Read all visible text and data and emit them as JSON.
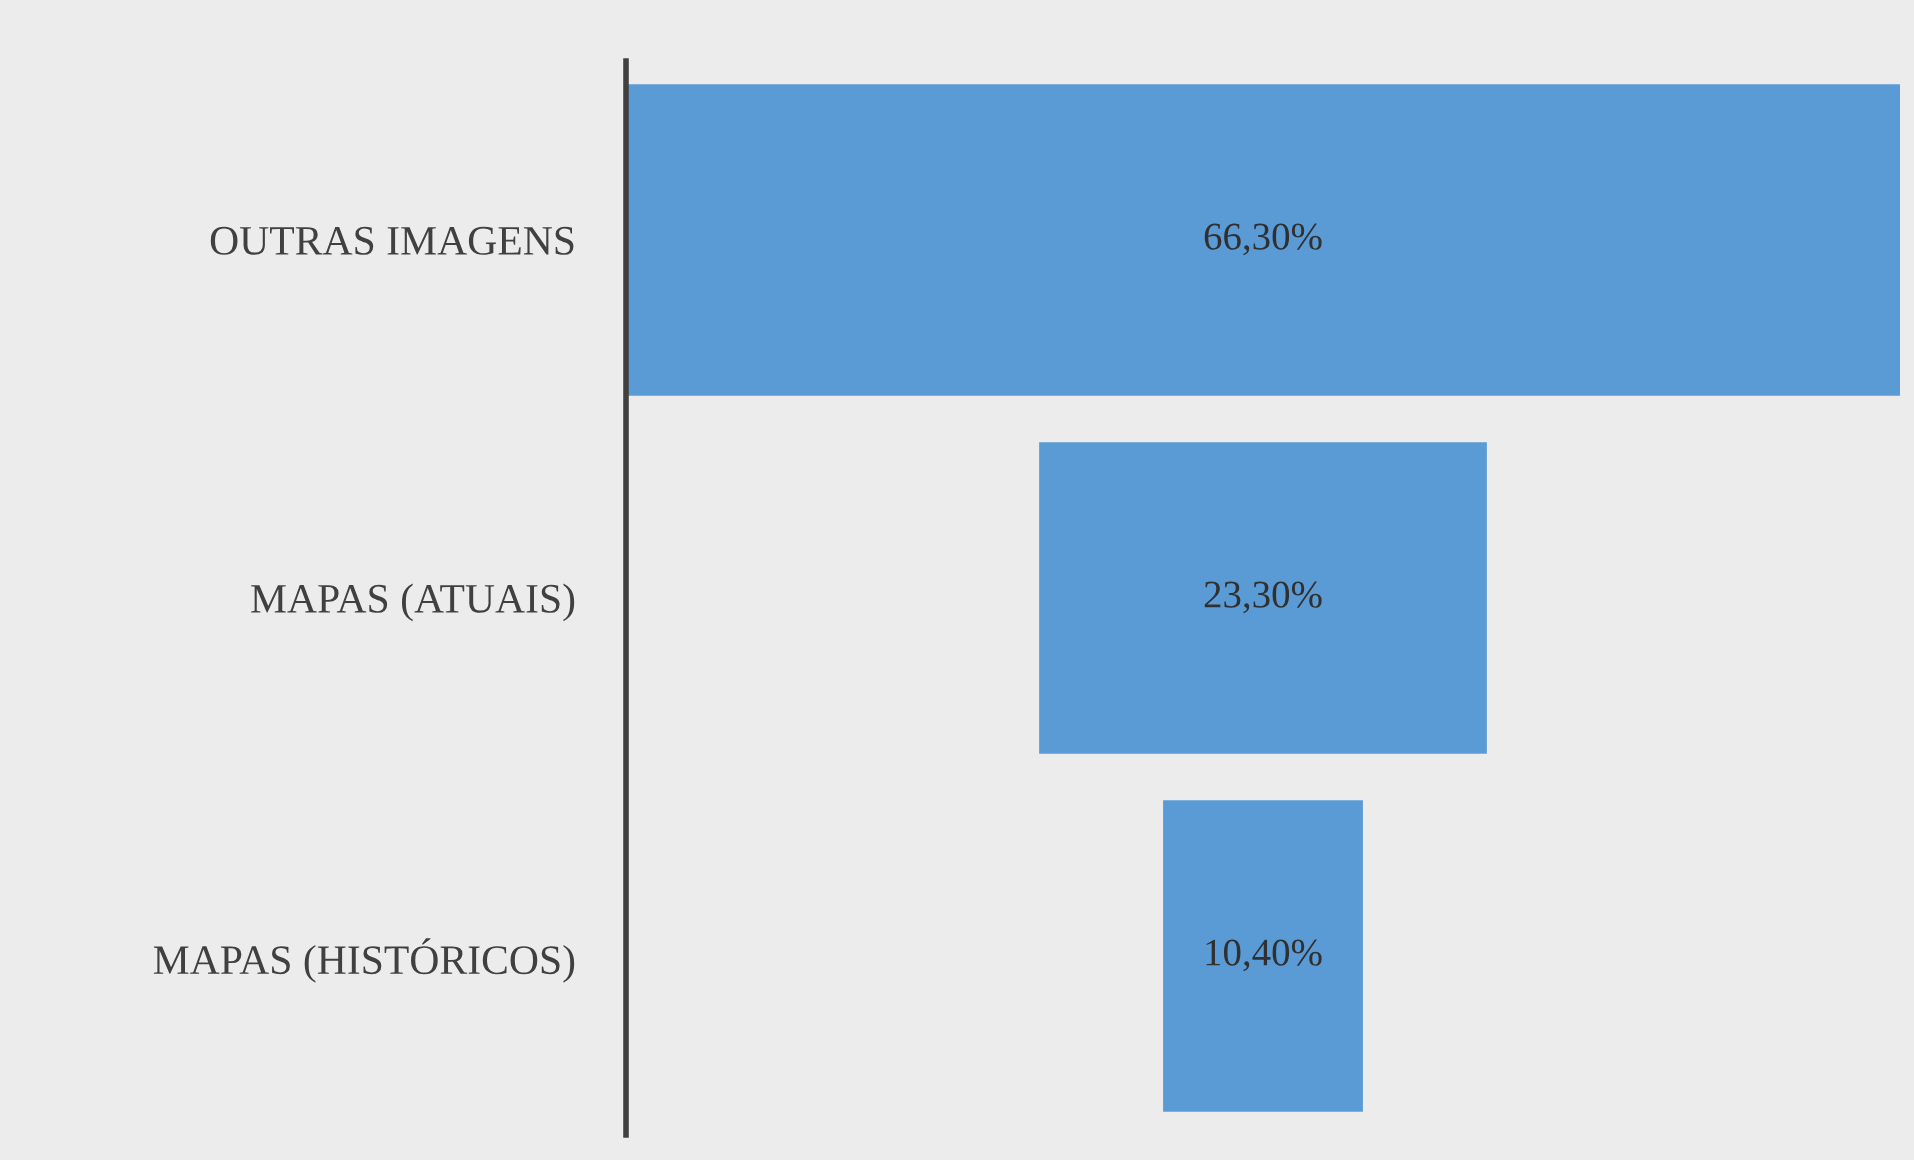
{
  "chart_data": {
    "type": "other",
    "categories": [
      "OUTRAS IMAGENS",
      "MAPAS (ATUAIS)",
      "MAPAS (HISTÓRICOS)"
    ],
    "values": [
      66.3,
      23.3,
      10.4
    ],
    "value_labels": [
      "66,30%",
      "23,30%",
      "10,40%"
    ],
    "color": "#5b9bd5"
  }
}
